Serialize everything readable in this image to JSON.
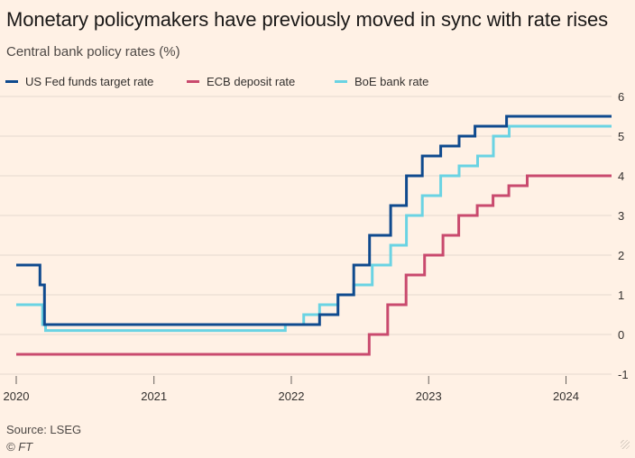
{
  "chart_data": {
    "type": "line",
    "title": "Monetary policymakers have previously moved in sync with rate rises",
    "subtitle": "Central bank policy rates (%)",
    "source": "Source: LSEG",
    "copyright": "© FT",
    "xlabel": "",
    "ylabel": "",
    "step": true,
    "xlim": [
      "2020-01-01",
      "2024-05-01"
    ],
    "ylim": [
      -1,
      6
    ],
    "yticks": [
      6,
      5,
      4,
      3,
      2,
      1,
      0,
      -1
    ],
    "xticks": [
      "2020",
      "2021",
      "2022",
      "2023",
      "2024"
    ],
    "grid": true,
    "y_axis_position": "right",
    "legend_position": "top-left",
    "series": [
      {
        "name": "US Fed funds target rate",
        "color": "#0f4a8e",
        "x": [
          "2020-01-01",
          "2020-03-04",
          "2020-03-16",
          "2022-03-17",
          "2022-05-05",
          "2022-06-16",
          "2022-07-28",
          "2022-09-22",
          "2022-11-03",
          "2022-12-15",
          "2023-02-02",
          "2023-03-23",
          "2023-05-04",
          "2023-07-27",
          "2024-05-01"
        ],
        "y": [
          1.75,
          1.25,
          0.25,
          0.5,
          1.0,
          1.75,
          2.5,
          3.25,
          4.0,
          4.5,
          4.75,
          5.0,
          5.25,
          5.5,
          5.5
        ]
      },
      {
        "name": "ECB deposit rate",
        "color": "#c94a6e",
        "x": [
          "2020-01-01",
          "2022-07-27",
          "2022-09-14",
          "2022-11-02",
          "2022-12-21",
          "2023-02-08",
          "2023-03-22",
          "2023-05-10",
          "2023-06-21",
          "2023-08-02",
          "2023-09-20",
          "2024-05-01"
        ],
        "y": [
          -0.5,
          0.0,
          0.75,
          1.5,
          2.0,
          2.5,
          3.0,
          3.25,
          3.5,
          3.75,
          4.0,
          4.0
        ]
      },
      {
        "name": "BoE bank rate",
        "color": "#6ad3e3",
        "x": [
          "2020-01-01",
          "2020-03-11",
          "2020-03-19",
          "2021-12-16",
          "2022-02-03",
          "2022-03-17",
          "2022-05-05",
          "2022-06-16",
          "2022-08-04",
          "2022-09-22",
          "2022-11-03",
          "2022-12-15",
          "2023-02-02",
          "2023-03-23",
          "2023-05-11",
          "2023-06-22",
          "2023-08-03",
          "2024-05-01"
        ],
        "y": [
          0.75,
          0.25,
          0.1,
          0.25,
          0.5,
          0.75,
          1.0,
          1.25,
          1.75,
          2.25,
          3.0,
          3.5,
          4.0,
          4.25,
          4.5,
          5.0,
          5.25,
          5.25
        ]
      }
    ]
  }
}
